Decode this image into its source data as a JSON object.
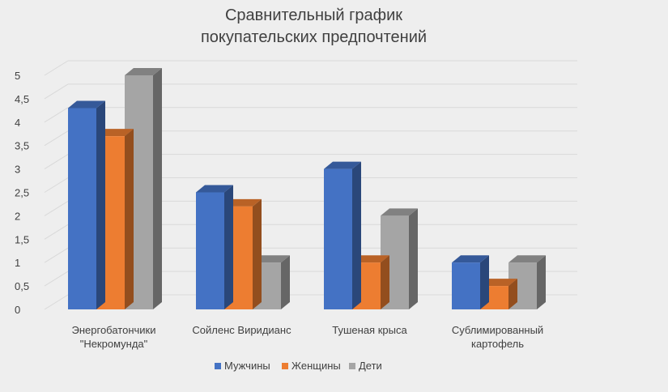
{
  "chart_data": {
    "type": "bar",
    "title_lines": [
      "Сравнительный график",
      "покупательских предпочтений"
    ],
    "categories": [
      [
        "Энергобатончики",
        "\"Некромунда\""
      ],
      [
        "Сойленс Виридианс"
      ],
      [
        "Тушеная крыса"
      ],
      [
        "Сублимированный",
        "картофель"
      ]
    ],
    "series": [
      {
        "name": "Мужчины",
        "color": "#4472c4",
        "values": [
          4.3,
          2.5,
          3.0,
          1.0
        ]
      },
      {
        "name": "Женщины",
        "color": "#ed7d31",
        "values": [
          3.7,
          2.2,
          1.0,
          0.5
        ]
      },
      {
        "name": "Дети",
        "color": "#a5a5a5",
        "values": [
          5.0,
          1.0,
          2.0,
          1.0
        ]
      }
    ],
    "ylim": [
      0,
      5
    ],
    "yticks": [
      "0",
      "0,5",
      "1",
      "1,5",
      "2",
      "2,5",
      "3",
      "3,5",
      "4",
      "4,5",
      "5"
    ],
    "grid": true,
    "legend_position": "bottom",
    "style": "3d-column"
  }
}
